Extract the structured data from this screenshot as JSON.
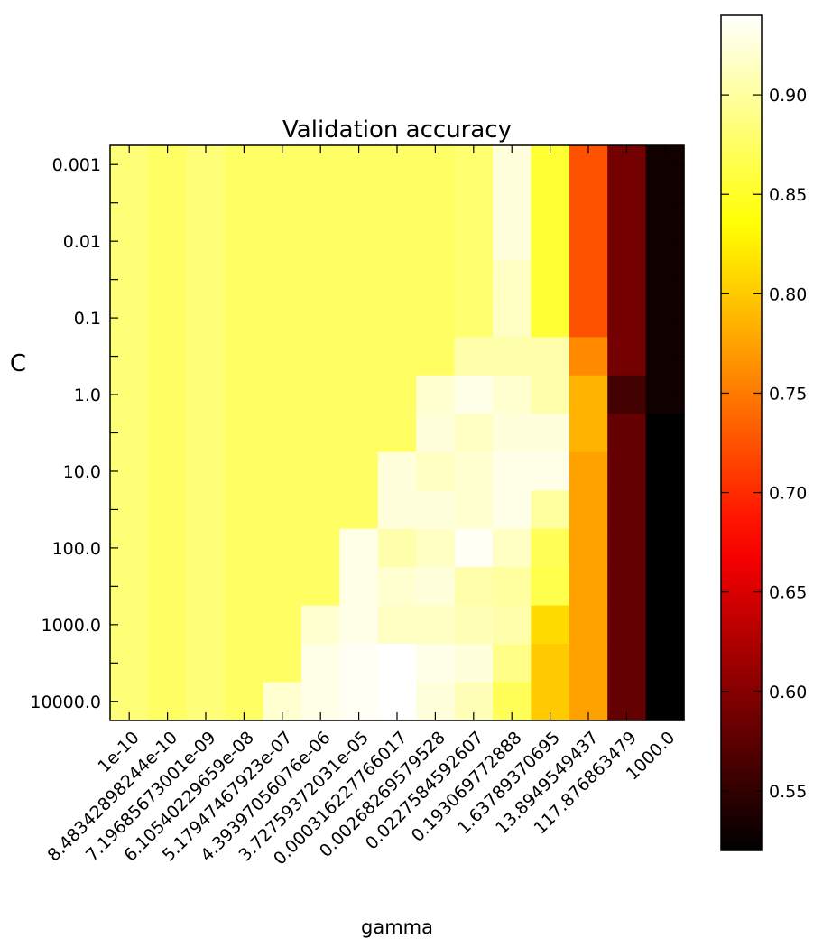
{
  "chart_data": {
    "type": "heatmap",
    "title": "Validation accuracy",
    "xlabel": "gamma",
    "ylabel": "C",
    "x": [
      "1e-10",
      "8.48342898244e-10",
      "7.19685673001e-09",
      "6.10540229659e-08",
      "5.17947467923e-07",
      "4.39397056076e-06",
      "3.72759372031e-05",
      "0.000316227766017",
      "0.00268269579528",
      "0.0227584592607",
      "0.193069772888",
      "1.63789370695",
      "13.8949549437",
      "117.876863479",
      "1000.0"
    ],
    "x_tick_labels": [
      "1e-10",
      "8.48342898244e-10",
      "7.19685673001e-09",
      "6.10540229659e-08",
      "5.17947467923e-07",
      "4.39397056076e-06",
      "3.72759372031e-05",
      "0.000316227766017",
      "0.00268269579528",
      "0.0227584592607",
      "0.193069772888",
      "1.63789370695",
      "13.8949549437",
      "117.876863479",
      "1000.0"
    ],
    "y": [
      "0.001",
      "0.00316",
      "0.01",
      "0.0316",
      "0.1",
      "0.316",
      "1.0",
      "3.16",
      "10.0",
      "31.6",
      "100.0",
      "316",
      "1000.0",
      "3162",
      "10000.0"
    ],
    "y_tick_labels": [
      "0.001",
      "0.01",
      "0.1",
      "1.0",
      "10.0",
      "100.0",
      "1000.0",
      "10000.0"
    ],
    "values": [
      [
        0.883,
        0.875,
        0.884,
        0.875,
        0.875,
        0.875,
        0.875,
        0.875,
        0.875,
        0.88,
        0.925,
        0.855,
        0.725,
        0.59,
        0.53
      ],
      [
        0.883,
        0.875,
        0.884,
        0.875,
        0.875,
        0.875,
        0.875,
        0.875,
        0.875,
        0.88,
        0.925,
        0.855,
        0.725,
        0.59,
        0.53
      ],
      [
        0.883,
        0.875,
        0.884,
        0.875,
        0.875,
        0.875,
        0.875,
        0.875,
        0.875,
        0.88,
        0.925,
        0.855,
        0.725,
        0.59,
        0.53
      ],
      [
        0.883,
        0.875,
        0.884,
        0.875,
        0.875,
        0.875,
        0.875,
        0.875,
        0.875,
        0.88,
        0.915,
        0.855,
        0.725,
        0.59,
        0.53
      ],
      [
        0.883,
        0.875,
        0.884,
        0.875,
        0.875,
        0.875,
        0.875,
        0.875,
        0.875,
        0.88,
        0.915,
        0.855,
        0.725,
        0.59,
        0.53
      ],
      [
        0.883,
        0.875,
        0.884,
        0.875,
        0.875,
        0.875,
        0.875,
        0.875,
        0.875,
        0.905,
        0.905,
        0.905,
        0.76,
        0.59,
        0.53
      ],
      [
        0.883,
        0.875,
        0.884,
        0.875,
        0.875,
        0.875,
        0.875,
        0.875,
        0.92,
        0.93,
        0.92,
        0.905,
        0.785,
        0.56,
        0.53
      ],
      [
        0.883,
        0.875,
        0.884,
        0.875,
        0.875,
        0.875,
        0.875,
        0.875,
        0.925,
        0.915,
        0.925,
        0.925,
        0.785,
        0.58,
        0.52
      ],
      [
        0.883,
        0.875,
        0.884,
        0.875,
        0.875,
        0.875,
        0.875,
        0.925,
        0.915,
        0.92,
        0.93,
        0.93,
        0.775,
        0.58,
        0.52
      ],
      [
        0.883,
        0.875,
        0.884,
        0.875,
        0.875,
        0.875,
        0.875,
        0.925,
        0.925,
        0.92,
        0.93,
        0.9,
        0.775,
        0.58,
        0.52
      ],
      [
        0.883,
        0.875,
        0.884,
        0.875,
        0.875,
        0.875,
        0.93,
        0.905,
        0.915,
        0.935,
        0.915,
        0.87,
        0.775,
        0.58,
        0.52
      ],
      [
        0.883,
        0.875,
        0.884,
        0.875,
        0.875,
        0.875,
        0.93,
        0.92,
        0.925,
        0.905,
        0.9,
        0.865,
        0.775,
        0.58,
        0.52
      ],
      [
        0.883,
        0.875,
        0.884,
        0.875,
        0.875,
        0.92,
        0.93,
        0.915,
        0.915,
        0.91,
        0.905,
        0.81,
        0.775,
        0.58,
        0.52
      ],
      [
        0.883,
        0.875,
        0.884,
        0.875,
        0.875,
        0.93,
        0.935,
        0.945,
        0.93,
        0.925,
        0.89,
        0.8,
        0.775,
        0.58,
        0.52
      ],
      [
        0.883,
        0.875,
        0.884,
        0.875,
        0.92,
        0.93,
        0.935,
        0.945,
        0.925,
        0.91,
        0.87,
        0.8,
        0.775,
        0.58,
        0.52
      ]
    ],
    "colormap": "hot",
    "colorbar": {
      "range": [
        0.52,
        0.94
      ],
      "ticks": [
        0.55,
        0.6,
        0.65,
        0.7,
        0.75,
        0.8,
        0.85,
        0.9
      ],
      "tick_labels": [
        "0.55",
        "0.60",
        "0.65",
        "0.70",
        "0.75",
        "0.80",
        "0.85",
        "0.90"
      ]
    },
    "grid": false
  }
}
